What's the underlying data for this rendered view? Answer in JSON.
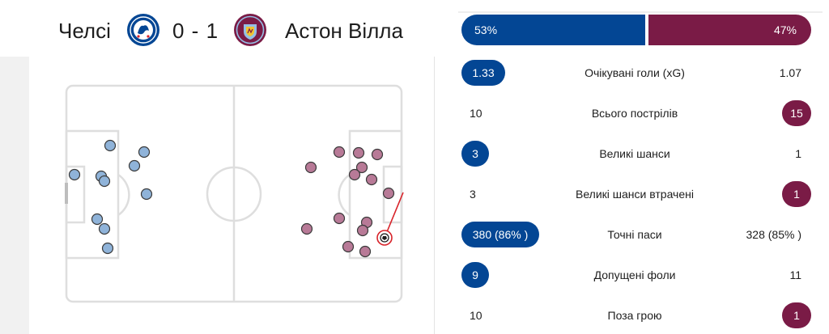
{
  "match": {
    "home_team": "Челсі",
    "away_team": "Астон Вілла",
    "score": "0 - 1",
    "home_crest_icon": "chelsea-crest-icon",
    "away_crest_icon": "aston-villa-crest-icon",
    "home_color": "#034694",
    "away_color": "#7a1b46"
  },
  "possession": {
    "home_label": "53%",
    "away_label": "47%",
    "home_pct": 53,
    "away_pct": 47
  },
  "stats": [
    {
      "label": "Очікувані голи (xG)",
      "home": "1.33",
      "away": "1.07",
      "leader": "home"
    },
    {
      "label": "Всього пострілів",
      "home": "10",
      "away": "15",
      "leader": "away"
    },
    {
      "label": "Великі шанси",
      "home": "3",
      "away": "1",
      "leader": "home"
    },
    {
      "label": "Великі шанси втрачені",
      "home": "3",
      "away": "1",
      "leader": "away"
    },
    {
      "label": "Точні паси",
      "home": "380 (86% )",
      "away": "328 (85% )",
      "leader": "home"
    },
    {
      "label": "Допущені фоли",
      "home": "9",
      "away": "11",
      "leader": "home"
    },
    {
      "label": "Поза грою",
      "home": "10",
      "away": "1",
      "leader": "away"
    }
  ],
  "shot_map": {
    "goal_icon": "football-icon",
    "home_dot_color": "#8fb3d9",
    "away_dot_color": "#b87a97"
  }
}
